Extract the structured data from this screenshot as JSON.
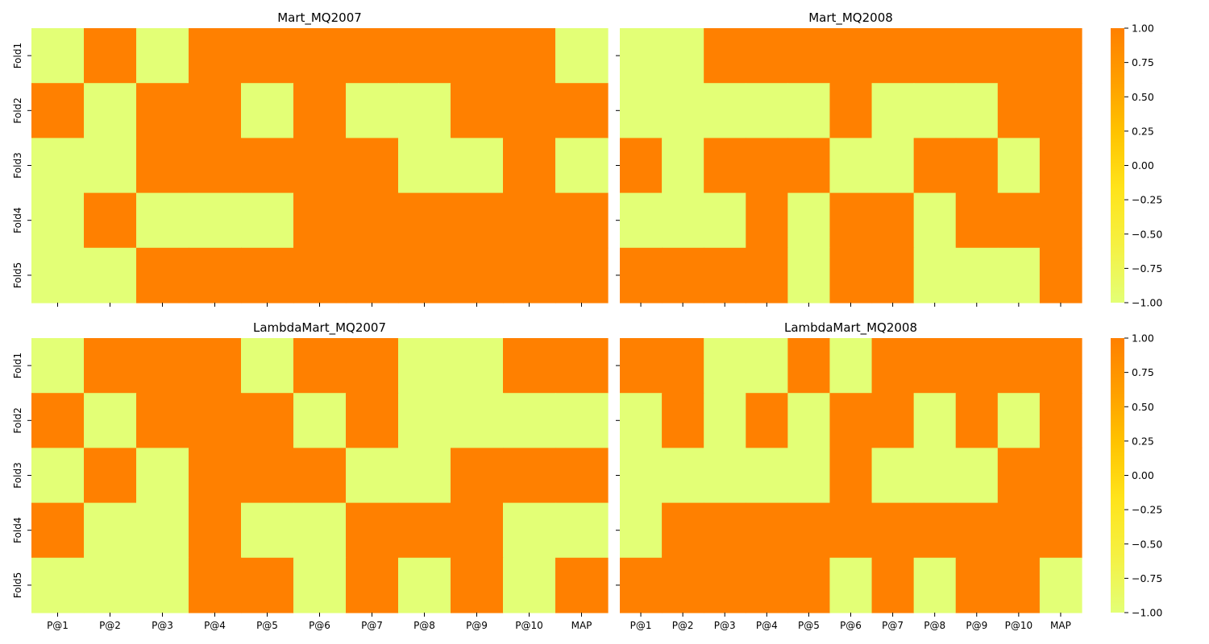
{
  "chart_data": [
    {
      "type": "heatmap",
      "title": "Mart_MQ2007",
      "x_categories": [
        "P@1",
        "P@2",
        "P@3",
        "P@4",
        "P@5",
        "P@6",
        "P@7",
        "P@8",
        "P@9",
        "P@10",
        "MAP"
      ],
      "y_categories": [
        "Fold1",
        "Fold2",
        "Fold3",
        "Fold4",
        "Fold5"
      ],
      "values": [
        [
          -1,
          1,
          -1,
          1,
          1,
          1,
          1,
          1,
          1,
          1,
          -1
        ],
        [
          1,
          -1,
          1,
          1,
          -1,
          1,
          -1,
          -1,
          1,
          1,
          1
        ],
        [
          -1,
          -1,
          1,
          1,
          1,
          1,
          1,
          -1,
          -1,
          1,
          -1
        ],
        [
          -1,
          1,
          -1,
          -1,
          -1,
          1,
          1,
          1,
          1,
          1,
          1
        ],
        [
          -1,
          -1,
          1,
          1,
          1,
          1,
          1,
          1,
          1,
          1,
          1
        ]
      ],
      "show_x_ticklabels": false,
      "show_y_ticklabels": true
    },
    {
      "type": "heatmap",
      "title": "Mart_MQ2008",
      "x_categories": [
        "P@1",
        "P@2",
        "P@3",
        "P@4",
        "P@5",
        "P@6",
        "P@7",
        "P@8",
        "P@9",
        "P@10",
        "MAP"
      ],
      "y_categories": [
        "Fold1",
        "Fold2",
        "Fold3",
        "Fold4",
        "Fold5"
      ],
      "values": [
        [
          -1,
          -1,
          1,
          1,
          1,
          1,
          1,
          1,
          1,
          1,
          1
        ],
        [
          -1,
          -1,
          -1,
          -1,
          -1,
          1,
          -1,
          -1,
          -1,
          1,
          1
        ],
        [
          1,
          -1,
          1,
          1,
          1,
          -1,
          -1,
          1,
          1,
          -1,
          1
        ],
        [
          -1,
          -1,
          -1,
          1,
          -1,
          1,
          1,
          -1,
          1,
          1,
          1
        ],
        [
          1,
          1,
          1,
          1,
          -1,
          1,
          1,
          -1,
          -1,
          -1,
          1
        ]
      ],
      "show_x_ticklabels": false,
      "show_y_ticklabels": false
    },
    {
      "type": "heatmap",
      "title": "LambdaMart_MQ2007",
      "x_categories": [
        "P@1",
        "P@2",
        "P@3",
        "P@4",
        "P@5",
        "P@6",
        "P@7",
        "P@8",
        "P@9",
        "P@10",
        "MAP"
      ],
      "y_categories": [
        "Fold1",
        "Fold2",
        "Fold3",
        "Fold4",
        "Fold5"
      ],
      "values": [
        [
          -1,
          1,
          1,
          1,
          -1,
          1,
          1,
          -1,
          -1,
          1,
          1
        ],
        [
          1,
          -1,
          1,
          1,
          1,
          -1,
          1,
          -1,
          -1,
          -1,
          -1
        ],
        [
          -1,
          1,
          -1,
          1,
          1,
          1,
          -1,
          -1,
          1,
          1,
          1
        ],
        [
          1,
          -1,
          -1,
          1,
          -1,
          -1,
          1,
          1,
          1,
          -1,
          -1
        ],
        [
          -1,
          -1,
          -1,
          1,
          1,
          -1,
          1,
          -1,
          1,
          -1,
          1
        ]
      ],
      "show_x_ticklabels": true,
      "show_y_ticklabels": true
    },
    {
      "type": "heatmap",
      "title": "LambdaMart_MQ2008",
      "x_categories": [
        "P@1",
        "P@2",
        "P@3",
        "P@4",
        "P@5",
        "P@6",
        "P@7",
        "P@8",
        "P@9",
        "P@10",
        "MAP"
      ],
      "y_categories": [
        "Fold1",
        "Fold2",
        "Fold3",
        "Fold4",
        "Fold5"
      ],
      "values": [
        [
          1,
          1,
          -1,
          -1,
          1,
          -1,
          1,
          1,
          1,
          1,
          1
        ],
        [
          -1,
          1,
          -1,
          1,
          -1,
          1,
          1,
          -1,
          1,
          -1,
          1
        ],
        [
          -1,
          -1,
          -1,
          -1,
          -1,
          1,
          -1,
          -1,
          -1,
          1,
          1
        ],
        [
          -1,
          1,
          1,
          1,
          1,
          1,
          1,
          1,
          1,
          1,
          1
        ],
        [
          1,
          1,
          1,
          1,
          1,
          -1,
          1,
          -1,
          1,
          1,
          -1
        ]
      ],
      "show_x_ticklabels": true,
      "show_y_ticklabels": false
    }
  ],
  "colorbar": {
    "vmin": -1,
    "vmax": 1,
    "tick_values": [
      1,
      0.75,
      0.5,
      0.25,
      0,
      -0.25,
      -0.5,
      -0.75,
      -1
    ],
    "tick_labels": [
      "1.00",
      "0.75",
      "0.50",
      "0.25",
      "0.00",
      "−0.25",
      "−0.50",
      "−0.75",
      "−1.00"
    ],
    "colors": [
      "#e3ff76",
      "#ffe31a",
      "#ffc300",
      "#ff8000"
    ]
  },
  "colors": {
    "low": "#e3ff76",
    "high": "#ff8000"
  }
}
